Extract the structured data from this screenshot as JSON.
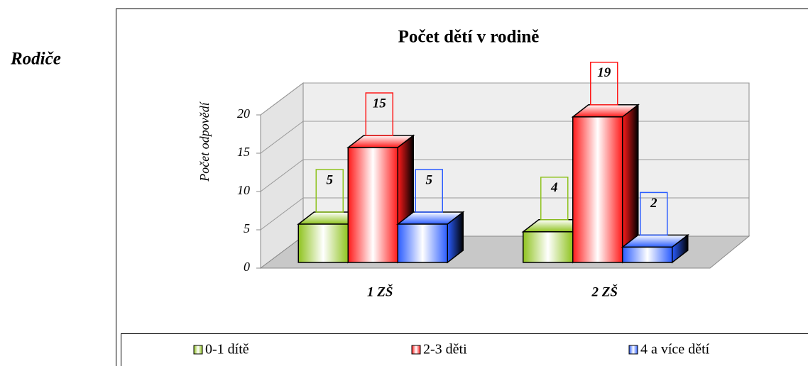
{
  "heading": "Rodiče",
  "chart_data": {
    "type": "bar3d",
    "title": "Počet dětí v rodině",
    "y_label": "Počet odpovědí",
    "categories": [
      "1 ZŠ",
      "2 ZŠ"
    ],
    "series": [
      {
        "name": "0-1 dítě",
        "color": "#8fc31f",
        "values": [
          5,
          4
        ]
      },
      {
        "name": "2-3 děti",
        "color": "#ff1a1a",
        "values": [
          15,
          19
        ]
      },
      {
        "name": "4 a více dětí",
        "color": "#2a5cff",
        "values": [
          5,
          2
        ]
      }
    ],
    "ylim": [
      0,
      20
    ],
    "yticks": [
      0,
      5,
      10,
      15,
      20
    ],
    "grid": true,
    "legend": "bottom"
  }
}
